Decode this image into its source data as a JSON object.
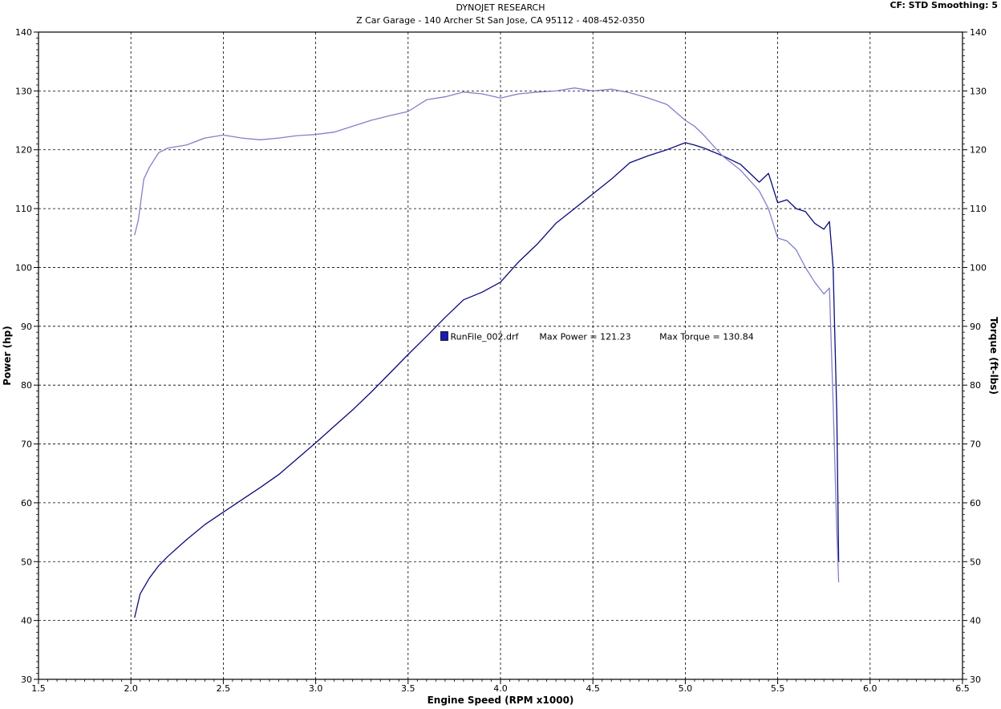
{
  "header": {
    "title": "DYNOJET RESEARCH",
    "subtitle": "Z Car Garage - 140 Archer St San Jose, CA 95112 - 408-452-0350",
    "cf_info": "CF: STD  Smoothing: 5"
  },
  "chart_data": {
    "type": "line",
    "xlabel": "Engine Speed (RPM x1000)",
    "ylabel_left": "Power (hp)",
    "ylabel_right": "Torque (ft-lbs)",
    "xlim": [
      1.5,
      6.5
    ],
    "ylim": [
      30,
      140
    ],
    "x_ticks": [
      "1.5",
      "2.0",
      "2.5",
      "3.0",
      "3.5",
      "4.0",
      "4.5",
      "5.0",
      "5.5",
      "6.0",
      "6.5"
    ],
    "y_ticks": [
      "30",
      "40",
      "50",
      "60",
      "70",
      "80",
      "90",
      "100",
      "110",
      "120",
      "130",
      "140"
    ],
    "grid": true,
    "colors": {
      "power": "#0a0a7a",
      "torque": "#8080c8",
      "legend_swatch": "#1a1ab4"
    },
    "legend": {
      "run_name": "RunFile_002.drf",
      "max_power_text": "Max Power = 121.23",
      "max_torque_text": "Max Torque = 130.84"
    },
    "series": [
      {
        "key": "power",
        "x": [
          2.02,
          2.05,
          2.1,
          2.15,
          2.2,
          2.3,
          2.4,
          2.5,
          2.6,
          2.7,
          2.8,
          2.9,
          3.0,
          3.1,
          3.2,
          3.3,
          3.4,
          3.5,
          3.6,
          3.7,
          3.8,
          3.9,
          4.0,
          4.1,
          4.2,
          4.3,
          4.4,
          4.5,
          4.6,
          4.7,
          4.8,
          4.9,
          5.0,
          5.05,
          5.1,
          5.2,
          5.3,
          5.4,
          5.45,
          5.5,
          5.55,
          5.6,
          5.65,
          5.7,
          5.75,
          5.78,
          5.8,
          5.82,
          5.83
        ],
        "y": [
          40.5,
          44.5,
          47.2,
          49.3,
          50.9,
          53.7,
          56.3,
          58.4,
          60.5,
          62.6,
          64.8,
          67.5,
          70.2,
          73.0,
          75.8,
          78.8,
          82.0,
          85.2,
          88.3,
          91.5,
          94.5,
          95.8,
          97.5,
          101.0,
          104.0,
          107.5,
          110.0,
          112.5,
          115.0,
          117.8,
          119.0,
          120.0,
          121.2,
          120.8,
          120.3,
          119.0,
          117.5,
          114.5,
          116.0,
          111.0,
          111.5,
          110.0,
          109.5,
          107.5,
          106.5,
          107.8,
          100.0,
          75.0,
          50.0
        ]
      },
      {
        "key": "torque",
        "x": [
          2.02,
          2.04,
          2.07,
          2.1,
          2.15,
          2.2,
          2.3,
          2.4,
          2.5,
          2.6,
          2.7,
          2.8,
          2.9,
          3.0,
          3.1,
          3.2,
          3.3,
          3.4,
          3.5,
          3.6,
          3.7,
          3.8,
          3.9,
          4.0,
          4.1,
          4.2,
          4.3,
          4.4,
          4.5,
          4.6,
          4.7,
          4.8,
          4.9,
          5.0,
          5.05,
          5.1,
          5.2,
          5.3,
          5.4,
          5.45,
          5.5,
          5.55,
          5.6,
          5.65,
          5.7,
          5.75,
          5.78,
          5.8,
          5.82,
          5.83
        ],
        "y": [
          105.5,
          108.0,
          115.0,
          117.0,
          119.5,
          120.3,
          120.8,
          122.0,
          122.5,
          122.0,
          121.7,
          122.0,
          122.4,
          122.6,
          123.0,
          124.0,
          125.0,
          125.8,
          126.5,
          128.5,
          129.0,
          129.8,
          129.5,
          128.8,
          129.5,
          129.8,
          130.0,
          130.5,
          130.0,
          130.3,
          129.7,
          128.8,
          127.7,
          125.0,
          124.0,
          122.5,
          119.0,
          116.5,
          113.0,
          110.0,
          105.0,
          104.5,
          103.0,
          100.0,
          97.5,
          95.5,
          96.5,
          77.0,
          55.0,
          46.5
        ]
      }
    ]
  }
}
